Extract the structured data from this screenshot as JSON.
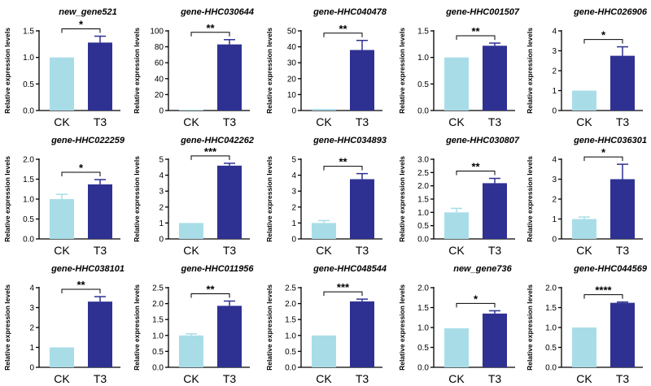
{
  "colors": {
    "ck": "#a8dde8",
    "t3": "#2e3192",
    "axis": "#000000"
  },
  "chart_data": [
    {
      "type": "bar",
      "title": "new_gene521",
      "ylabel": "Relative expression levels",
      "categories": [
        "CK",
        "T3"
      ],
      "values": [
        1.0,
        1.28
      ],
      "errors": [
        0.0,
        0.12
      ],
      "ylim": [
        0,
        1.5
      ],
      "yticks": [
        "0.0",
        "0.5",
        "1.0",
        "1.5"
      ],
      "significance": "*"
    },
    {
      "type": "bar",
      "title": "gene-HHC030644",
      "ylabel": "Relative expression levels",
      "categories": [
        "CK",
        "T3"
      ],
      "values": [
        1.0,
        83
      ],
      "errors": [
        0.0,
        6
      ],
      "ylim": [
        0,
        100
      ],
      "yticks": [
        "0",
        "20",
        "40",
        "60",
        "80",
        "100"
      ],
      "significance": "**"
    },
    {
      "type": "bar",
      "title": "gene-HHC040478",
      "ylabel": "Relative expression levels",
      "categories": [
        "CK",
        "T3"
      ],
      "values": [
        1.0,
        38
      ],
      "errors": [
        0.0,
        6
      ],
      "ylim": [
        0,
        50
      ],
      "yticks": [
        "0",
        "10",
        "20",
        "30",
        "40",
        "50"
      ],
      "significance": "**"
    },
    {
      "type": "bar",
      "title": "gene-HHC001507",
      "ylabel": "Relative expression levels",
      "categories": [
        "CK",
        "T3"
      ],
      "values": [
        1.0,
        1.22
      ],
      "errors": [
        0.0,
        0.05
      ],
      "ylim": [
        0,
        1.5
      ],
      "yticks": [
        "0.0",
        "0.5",
        "1.0",
        "1.5"
      ],
      "significance": "**"
    },
    {
      "type": "bar",
      "title": "gene-HHC026906",
      "ylabel": "Relative expression levels",
      "categories": [
        "CK",
        "T3"
      ],
      "values": [
        1.0,
        2.75
      ],
      "errors": [
        0.0,
        0.45
      ],
      "ylim": [
        0,
        4
      ],
      "yticks": [
        "0",
        "1",
        "2",
        "3",
        "4"
      ],
      "significance": "*"
    },
    {
      "type": "bar",
      "title": "gene-HHC022259",
      "ylabel": "Relative expression levels",
      "categories": [
        "CK",
        "T3"
      ],
      "values": [
        1.0,
        1.37
      ],
      "errors": [
        0.12,
        0.12
      ],
      "ylim": [
        0,
        2.0
      ],
      "yticks": [
        "0.0",
        "0.5",
        "1.0",
        "1.5",
        "2.0"
      ],
      "significance": "*"
    },
    {
      "type": "bar",
      "title": "gene-HHC042262",
      "ylabel": "Relative expression levels",
      "categories": [
        "CK",
        "T3"
      ],
      "values": [
        1.0,
        4.6
      ],
      "errors": [
        0.0,
        0.15
      ],
      "ylim": [
        0,
        5
      ],
      "yticks": [
        "0",
        "1",
        "2",
        "3",
        "4",
        "5"
      ],
      "significance": "***"
    },
    {
      "type": "bar",
      "title": "gene-HHC034893",
      "ylabel": "Relative expression levels",
      "categories": [
        "CK",
        "T3"
      ],
      "values": [
        1.0,
        3.75
      ],
      "errors": [
        0.15,
        0.35
      ],
      "ylim": [
        0,
        5
      ],
      "yticks": [
        "0",
        "1",
        "2",
        "3",
        "4",
        "5"
      ],
      "significance": "**"
    },
    {
      "type": "bar",
      "title": "gene-HHC030807",
      "ylabel": "Relative expression levels",
      "categories": [
        "CK",
        "T3"
      ],
      "values": [
        1.0,
        2.1
      ],
      "errors": [
        0.15,
        0.18
      ],
      "ylim": [
        0,
        3.0
      ],
      "yticks": [
        "0.0",
        "0.5",
        "1.0",
        "1.5",
        "2.0",
        "2.5",
        "3.0"
      ],
      "significance": "**"
    },
    {
      "type": "bar",
      "title": "gene-HHC036301",
      "ylabel": "Relative expression levels",
      "categories": [
        "CK",
        "T3"
      ],
      "values": [
        1.0,
        3.0
      ],
      "errors": [
        0.1,
        0.75
      ],
      "ylim": [
        0,
        4
      ],
      "yticks": [
        "0",
        "1",
        "2",
        "3",
        "4"
      ],
      "significance": "*"
    },
    {
      "type": "bar",
      "title": "gene-HHC038101",
      "ylabel": "Relative expression levels",
      "categories": [
        "CK",
        "T3"
      ],
      "values": [
        1.0,
        3.3
      ],
      "errors": [
        0.0,
        0.25
      ],
      "ylim": [
        0,
        4
      ],
      "yticks": [
        "0",
        "1",
        "2",
        "3",
        "4"
      ],
      "significance": "**"
    },
    {
      "type": "bar",
      "title": "gene-HHC011956",
      "ylabel": "Relative expression levels",
      "categories": [
        "CK",
        "T3"
      ],
      "values": [
        1.0,
        1.93
      ],
      "errors": [
        0.05,
        0.15
      ],
      "ylim": [
        0,
        2.5
      ],
      "yticks": [
        "0.0",
        "0.5",
        "1.0",
        "1.5",
        "2.0",
        "2.5"
      ],
      "significance": "**"
    },
    {
      "type": "bar",
      "title": "gene-HHC048544",
      "ylabel": "Relative expression levels",
      "categories": [
        "CK",
        "T3"
      ],
      "values": [
        1.0,
        2.07
      ],
      "errors": [
        0.0,
        0.07
      ],
      "ylim": [
        0,
        2.5
      ],
      "yticks": [
        "0.0",
        "0.5",
        "1.0",
        "1.5",
        "2.0",
        "2.5"
      ],
      "significance": "***"
    },
    {
      "type": "bar",
      "title": "new_gene736",
      "ylabel": "Relative expression levels",
      "categories": [
        "CK",
        "T3"
      ],
      "values": [
        0.98,
        1.35
      ],
      "errors": [
        0.0,
        0.07
      ],
      "ylim": [
        0,
        2.0
      ],
      "yticks": [
        "0.0",
        "0.5",
        "1.0",
        "1.5",
        "2.0"
      ],
      "significance": "*"
    },
    {
      "type": "bar",
      "title": "gene-HHC044569",
      "ylabel": "Relative expression levels",
      "categories": [
        "CK",
        "T3"
      ],
      "values": [
        1.0,
        1.62
      ],
      "errors": [
        0.0,
        0.02
      ],
      "ylim": [
        0,
        2.0
      ],
      "yticks": [
        "0.0",
        "0.5",
        "1.0",
        "1.5",
        "2.0"
      ],
      "significance": "****"
    }
  ]
}
